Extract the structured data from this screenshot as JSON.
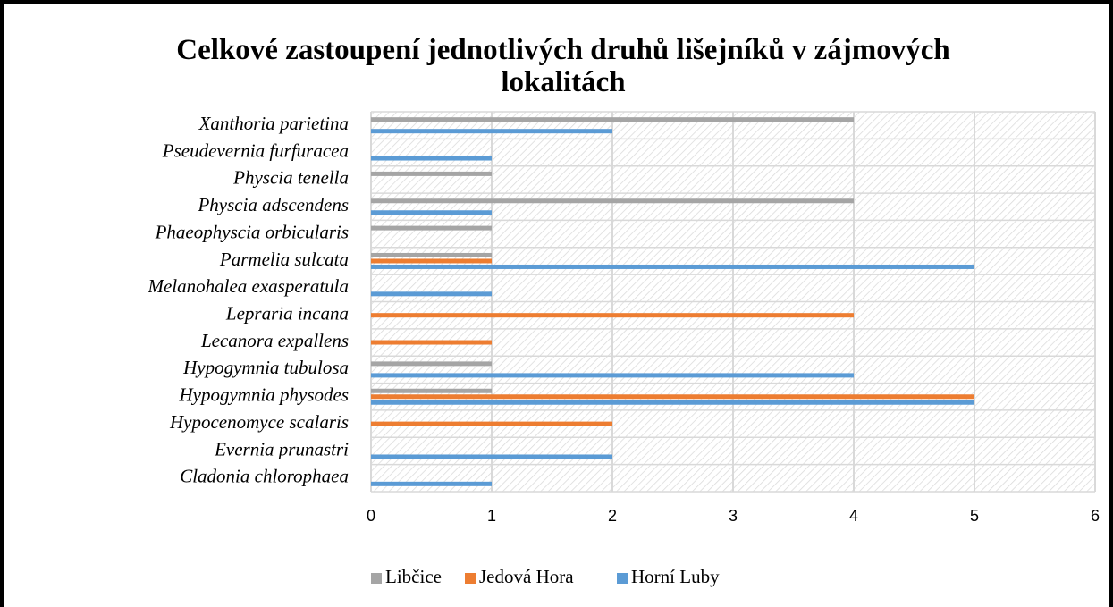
{
  "chart_data": {
    "type": "bar",
    "orientation": "horizontal",
    "title": "Celkové zastoupení jednotlivých druhů lišejníků v zájmových lokalitách",
    "categories": [
      "Xanthoria parietina",
      "Pseudevernia furfuracea",
      "Physcia tenella",
      "Physcia adscendens",
      "Phaeophyscia orbicularis",
      "Parmelia sulcata",
      "Melanohalea exasperatula",
      "Lepraria incana",
      "Lecanora expallens",
      "Hypogymnia tubulosa",
      "Hypogymnia physodes",
      "Hypocenomyce scalaris",
      "Evernia prunastri",
      "Cladonia chlorophaea"
    ],
    "series": [
      {
        "name": "Libčice",
        "color": "#a5a5a5",
        "values": [
          4,
          0,
          1,
          4,
          1,
          1,
          0,
          0,
          0,
          1,
          1,
          0,
          0,
          0
        ]
      },
      {
        "name": "Jedová Hora",
        "color": "#ed7d31",
        "values": [
          0,
          0,
          0,
          0,
          0,
          1,
          0,
          4,
          1,
          0,
          5,
          2,
          0,
          0
        ]
      },
      {
        "name": "Horní Luby",
        "color": "#5b9bd5",
        "values": [
          2,
          1,
          0,
          1,
          0,
          5,
          1,
          0,
          0,
          4,
          5,
          0,
          2,
          1
        ]
      }
    ],
    "xlim": [
      0,
      6
    ],
    "xticks": [
      0,
      1,
      2,
      3,
      4,
      5,
      6
    ],
    "grid": true,
    "legend": "bottom"
  }
}
